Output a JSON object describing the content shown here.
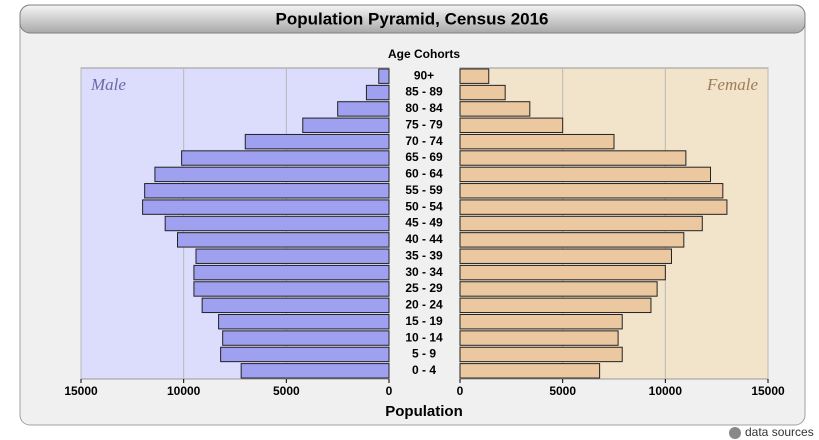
{
  "chart_data": {
    "type": "pyramid",
    "title": "Population Pyramid, Census 2016",
    "category_axis_label": "Age Cohorts",
    "xlabel": "Population",
    "categories": [
      "0 - 4",
      "5 - 9",
      "10 - 14",
      "15 - 19",
      "20 - 24",
      "25 - 29",
      "30 - 34",
      "35 - 39",
      "40 - 44",
      "45 - 49",
      "50 - 54",
      "55 - 59",
      "60 - 64",
      "65 - 69",
      "70 - 74",
      "75 - 79",
      "80 - 84",
      "85 - 89",
      "90+"
    ],
    "series": [
      {
        "name": "Male",
        "color": "#a0a0f0",
        "background": "#dcdcfc",
        "values": [
          7200,
          8200,
          8100,
          8300,
          9100,
          9500,
          9500,
          9400,
          10300,
          10900,
          12000,
          11900,
          11400,
          10100,
          7000,
          4200,
          2500,
          1100,
          500
        ]
      },
      {
        "name": "Female",
        "color": "#ecc8a0",
        "background": "#f2e4ca",
        "values": [
          6800,
          7900,
          7700,
          7900,
          9300,
          9600,
          10000,
          10300,
          10900,
          11800,
          13000,
          12800,
          12200,
          11000,
          7500,
          5000,
          3400,
          2200,
          1400
        ]
      }
    ],
    "xlim": [
      0,
      15000
    ],
    "xticks": [
      0,
      5000,
      10000,
      15000
    ],
    "grid": true,
    "footer": "data sources"
  }
}
